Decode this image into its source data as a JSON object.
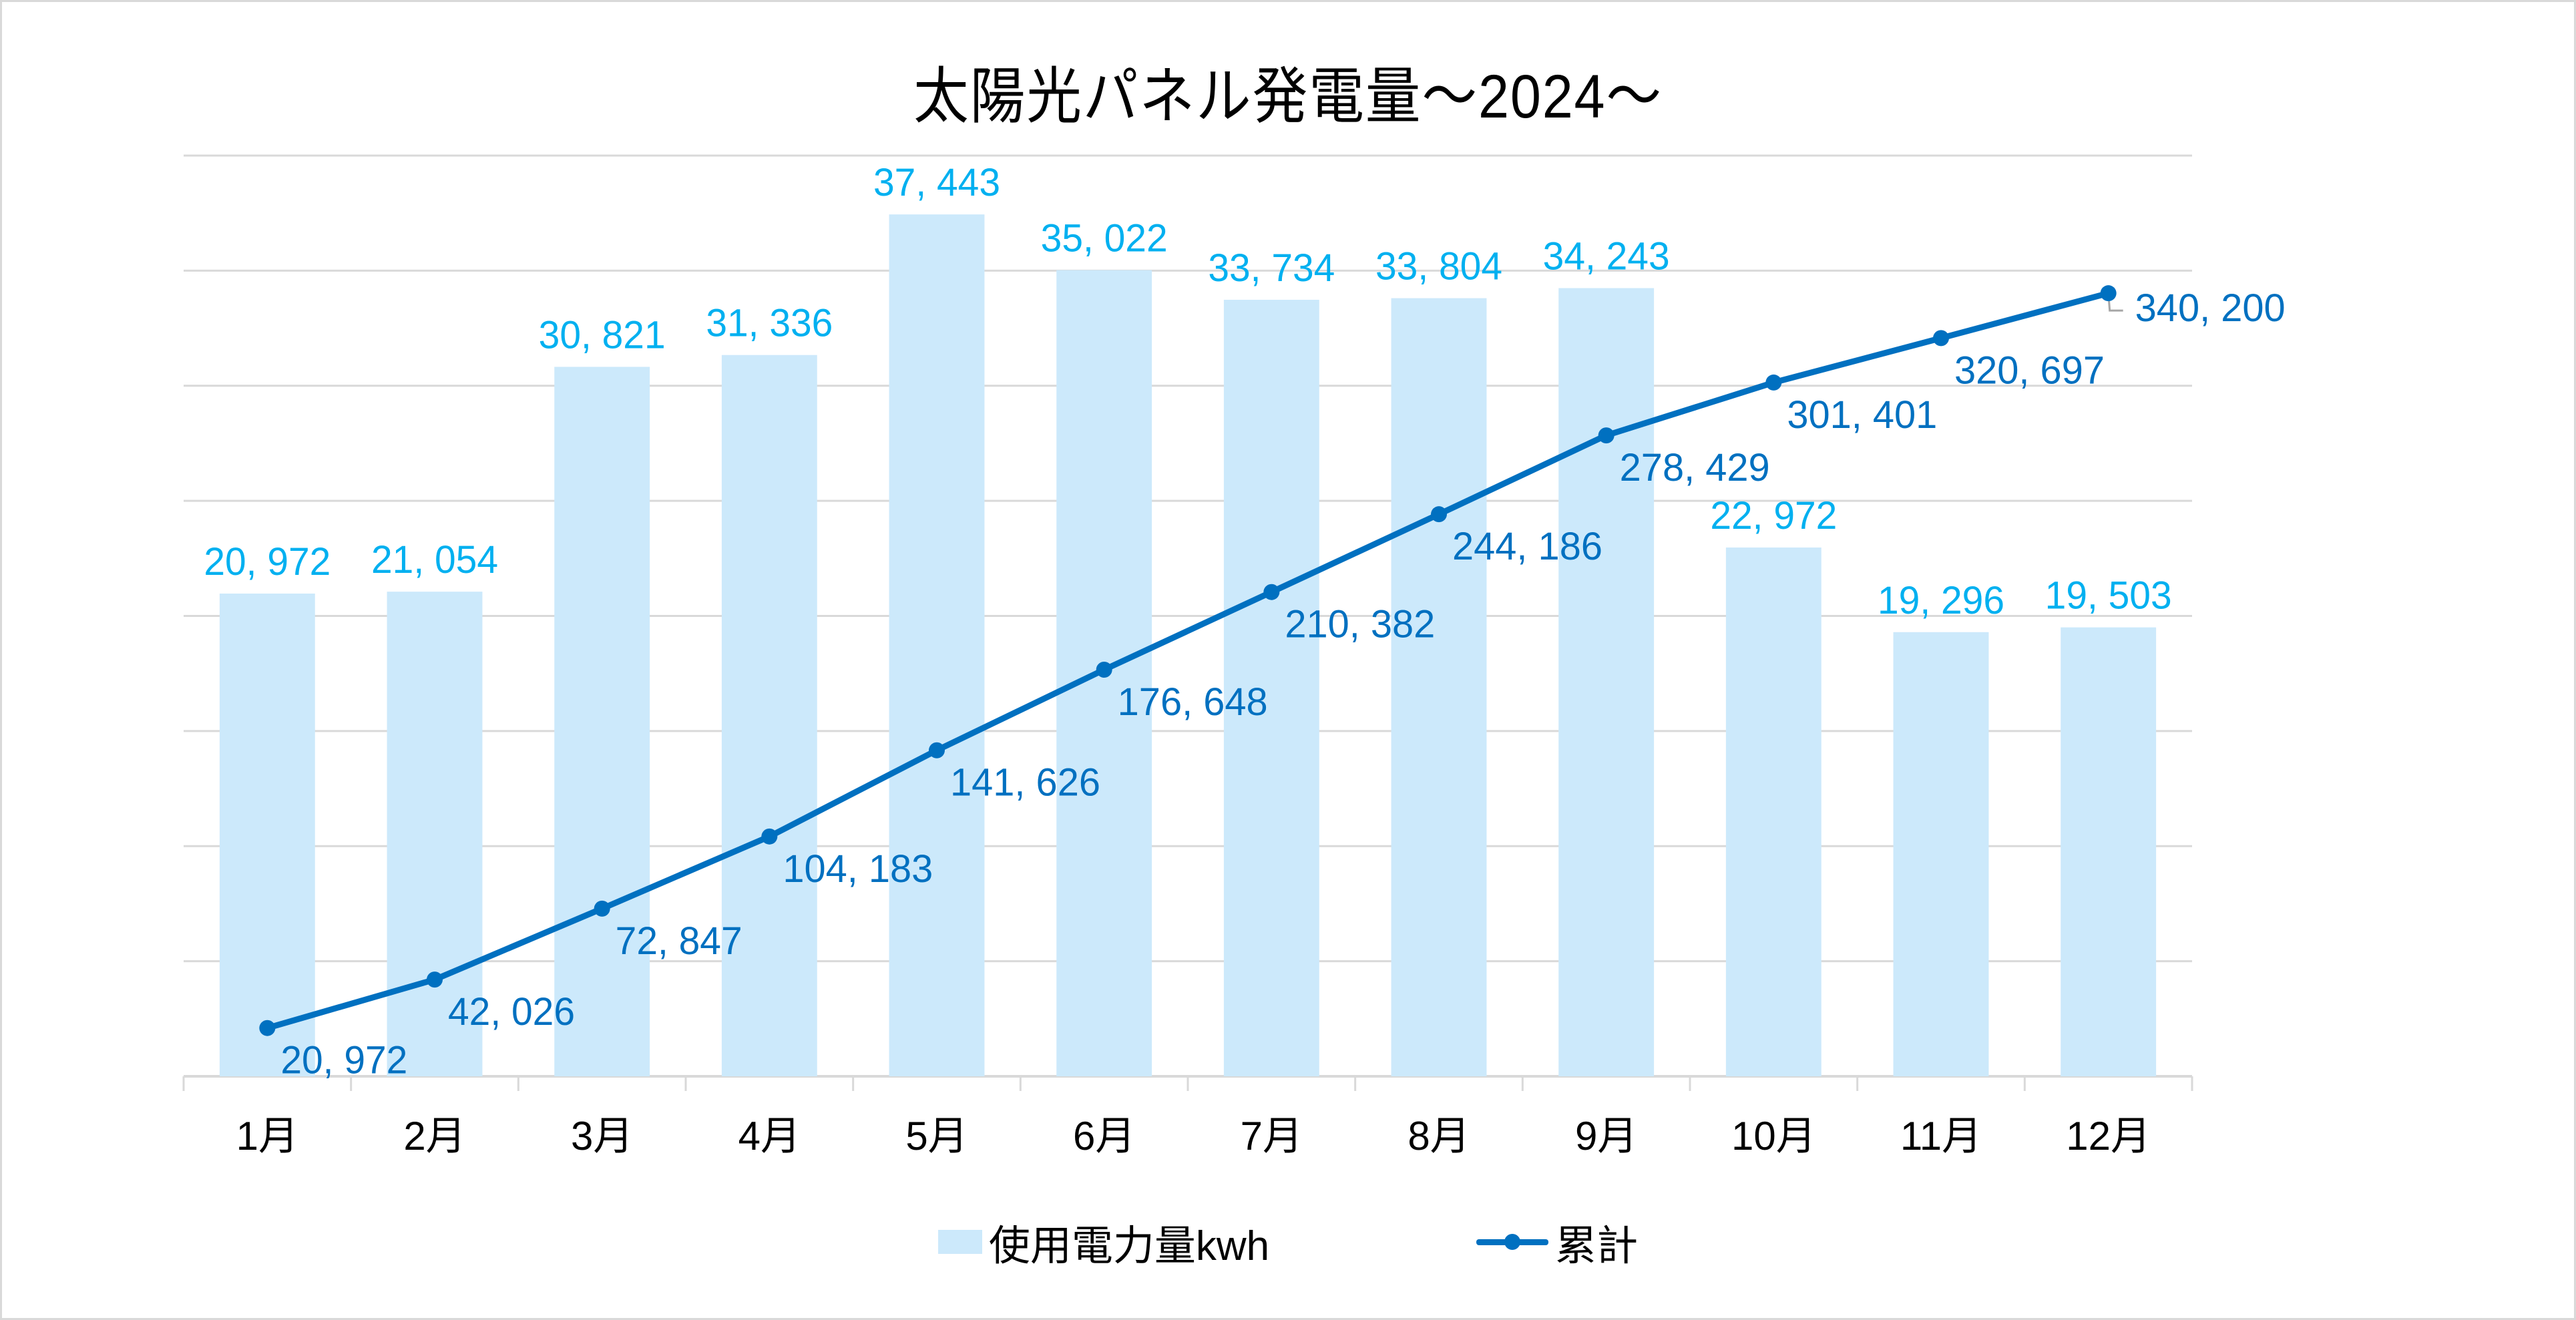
{
  "chart_data": {
    "type": "bar+line",
    "title": "太陽光パネル発電量～2024～",
    "categories": [
      "1月",
      "2月",
      "3月",
      "4月",
      "5月",
      "6月",
      "7月",
      "8月",
      "9月",
      "10月",
      "11月",
      "12月"
    ],
    "series": [
      {
        "name": "使用電力量kwh",
        "type": "bar",
        "axis": "primary",
        "color": "#cce9fb",
        "label_color": "#00b0f0",
        "values": [
          20972,
          21054,
          30821,
          31336,
          37443,
          35022,
          33734,
          33804,
          34243,
          22972,
          19296,
          19503
        ],
        "labels": [
          "20, 972",
          "21, 054",
          "30, 821",
          "31, 336",
          "37, 443",
          "35, 022",
          "33, 734",
          "33, 804",
          "34, 243",
          "22, 972",
          "19, 296",
          "19, 503"
        ]
      },
      {
        "name": "累計",
        "type": "line",
        "axis": "secondary",
        "color": "#0070c0",
        "label_color": "#0070c0",
        "values": [
          20972,
          42026,
          72847,
          104183,
          141626,
          176648,
          210382,
          244186,
          278429,
          301401,
          320697,
          340200
        ],
        "labels": [
          "20, 972",
          "42, 026",
          "72, 847",
          "104, 183",
          "141, 626",
          "176, 648",
          "210, 382",
          "244, 186",
          "278, 429",
          "301, 401",
          "320, 697",
          "340, 200"
        ]
      }
    ],
    "primary_ylim": [
      0,
      40000
    ],
    "secondary_ylim": [
      0,
      400000
    ],
    "gridlines": 8,
    "grid": true,
    "y_tick_labels_visible": false,
    "xlabel": "",
    "ylabel": "",
    "legend_position": "bottom"
  },
  "legend": [
    {
      "label": "使用電力量kwh"
    },
    {
      "label": "累計"
    }
  ]
}
